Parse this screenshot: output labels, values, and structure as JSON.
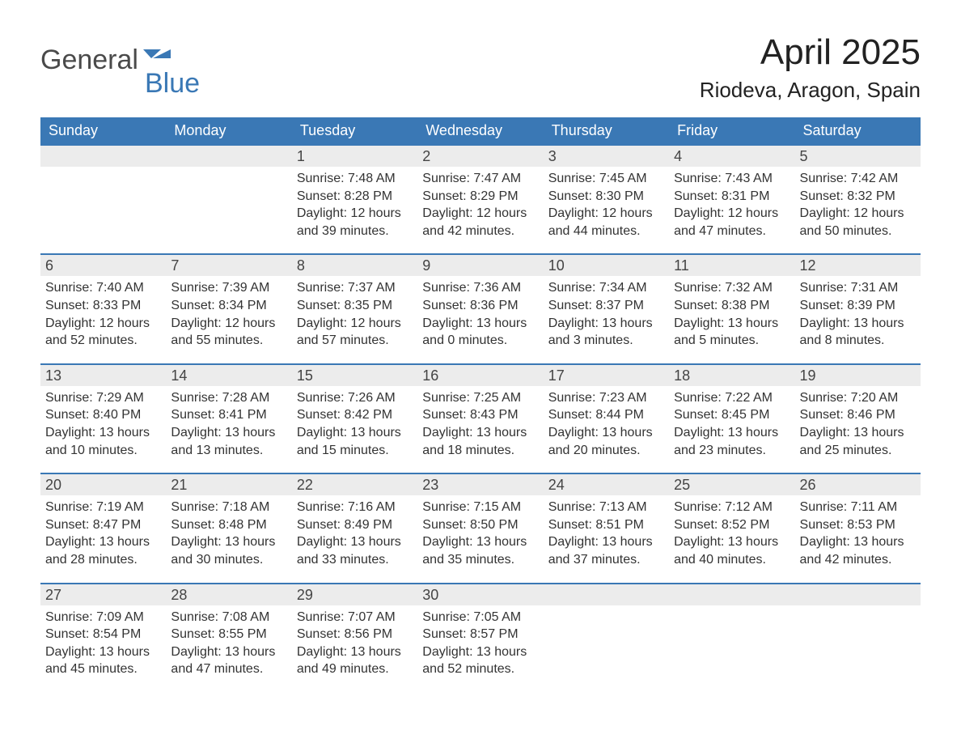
{
  "logo": {
    "part1": "General",
    "part2": "Blue",
    "icon_color": "#3a78b5",
    "text_color_1": "#4a4a4a",
    "text_color_2": "#3a78b5"
  },
  "title": "April 2025",
  "location": "Riodeva, Aragon, Spain",
  "colors": {
    "header_bg": "#3a78b5",
    "daynum_bg": "#ececec",
    "border": "#3a78b5",
    "text": "#333333"
  },
  "weekdays": [
    "Sunday",
    "Monday",
    "Tuesday",
    "Wednesday",
    "Thursday",
    "Friday",
    "Saturday"
  ],
  "weeks": [
    [
      {
        "n": "",
        "sunrise": "",
        "sunset": "",
        "daylight1": "",
        "daylight2": ""
      },
      {
        "n": "",
        "sunrise": "",
        "sunset": "",
        "daylight1": "",
        "daylight2": ""
      },
      {
        "n": "1",
        "sunrise": "Sunrise: 7:48 AM",
        "sunset": "Sunset: 8:28 PM",
        "daylight1": "Daylight: 12 hours",
        "daylight2": "and 39 minutes."
      },
      {
        "n": "2",
        "sunrise": "Sunrise: 7:47 AM",
        "sunset": "Sunset: 8:29 PM",
        "daylight1": "Daylight: 12 hours",
        "daylight2": "and 42 minutes."
      },
      {
        "n": "3",
        "sunrise": "Sunrise: 7:45 AM",
        "sunset": "Sunset: 8:30 PM",
        "daylight1": "Daylight: 12 hours",
        "daylight2": "and 44 minutes."
      },
      {
        "n": "4",
        "sunrise": "Sunrise: 7:43 AM",
        "sunset": "Sunset: 8:31 PM",
        "daylight1": "Daylight: 12 hours",
        "daylight2": "and 47 minutes."
      },
      {
        "n": "5",
        "sunrise": "Sunrise: 7:42 AM",
        "sunset": "Sunset: 8:32 PM",
        "daylight1": "Daylight: 12 hours",
        "daylight2": "and 50 minutes."
      }
    ],
    [
      {
        "n": "6",
        "sunrise": "Sunrise: 7:40 AM",
        "sunset": "Sunset: 8:33 PM",
        "daylight1": "Daylight: 12 hours",
        "daylight2": "and 52 minutes."
      },
      {
        "n": "7",
        "sunrise": "Sunrise: 7:39 AM",
        "sunset": "Sunset: 8:34 PM",
        "daylight1": "Daylight: 12 hours",
        "daylight2": "and 55 minutes."
      },
      {
        "n": "8",
        "sunrise": "Sunrise: 7:37 AM",
        "sunset": "Sunset: 8:35 PM",
        "daylight1": "Daylight: 12 hours",
        "daylight2": "and 57 minutes."
      },
      {
        "n": "9",
        "sunrise": "Sunrise: 7:36 AM",
        "sunset": "Sunset: 8:36 PM",
        "daylight1": "Daylight: 13 hours",
        "daylight2": "and 0 minutes."
      },
      {
        "n": "10",
        "sunrise": "Sunrise: 7:34 AM",
        "sunset": "Sunset: 8:37 PM",
        "daylight1": "Daylight: 13 hours",
        "daylight2": "and 3 minutes."
      },
      {
        "n": "11",
        "sunrise": "Sunrise: 7:32 AM",
        "sunset": "Sunset: 8:38 PM",
        "daylight1": "Daylight: 13 hours",
        "daylight2": "and 5 minutes."
      },
      {
        "n": "12",
        "sunrise": "Sunrise: 7:31 AM",
        "sunset": "Sunset: 8:39 PM",
        "daylight1": "Daylight: 13 hours",
        "daylight2": "and 8 minutes."
      }
    ],
    [
      {
        "n": "13",
        "sunrise": "Sunrise: 7:29 AM",
        "sunset": "Sunset: 8:40 PM",
        "daylight1": "Daylight: 13 hours",
        "daylight2": "and 10 minutes."
      },
      {
        "n": "14",
        "sunrise": "Sunrise: 7:28 AM",
        "sunset": "Sunset: 8:41 PM",
        "daylight1": "Daylight: 13 hours",
        "daylight2": "and 13 minutes."
      },
      {
        "n": "15",
        "sunrise": "Sunrise: 7:26 AM",
        "sunset": "Sunset: 8:42 PM",
        "daylight1": "Daylight: 13 hours",
        "daylight2": "and 15 minutes."
      },
      {
        "n": "16",
        "sunrise": "Sunrise: 7:25 AM",
        "sunset": "Sunset: 8:43 PM",
        "daylight1": "Daylight: 13 hours",
        "daylight2": "and 18 minutes."
      },
      {
        "n": "17",
        "sunrise": "Sunrise: 7:23 AM",
        "sunset": "Sunset: 8:44 PM",
        "daylight1": "Daylight: 13 hours",
        "daylight2": "and 20 minutes."
      },
      {
        "n": "18",
        "sunrise": "Sunrise: 7:22 AM",
        "sunset": "Sunset: 8:45 PM",
        "daylight1": "Daylight: 13 hours",
        "daylight2": "and 23 minutes."
      },
      {
        "n": "19",
        "sunrise": "Sunrise: 7:20 AM",
        "sunset": "Sunset: 8:46 PM",
        "daylight1": "Daylight: 13 hours",
        "daylight2": "and 25 minutes."
      }
    ],
    [
      {
        "n": "20",
        "sunrise": "Sunrise: 7:19 AM",
        "sunset": "Sunset: 8:47 PM",
        "daylight1": "Daylight: 13 hours",
        "daylight2": "and 28 minutes."
      },
      {
        "n": "21",
        "sunrise": "Sunrise: 7:18 AM",
        "sunset": "Sunset: 8:48 PM",
        "daylight1": "Daylight: 13 hours",
        "daylight2": "and 30 minutes."
      },
      {
        "n": "22",
        "sunrise": "Sunrise: 7:16 AM",
        "sunset": "Sunset: 8:49 PM",
        "daylight1": "Daylight: 13 hours",
        "daylight2": "and 33 minutes."
      },
      {
        "n": "23",
        "sunrise": "Sunrise: 7:15 AM",
        "sunset": "Sunset: 8:50 PM",
        "daylight1": "Daylight: 13 hours",
        "daylight2": "and 35 minutes."
      },
      {
        "n": "24",
        "sunrise": "Sunrise: 7:13 AM",
        "sunset": "Sunset: 8:51 PM",
        "daylight1": "Daylight: 13 hours",
        "daylight2": "and 37 minutes."
      },
      {
        "n": "25",
        "sunrise": "Sunrise: 7:12 AM",
        "sunset": "Sunset: 8:52 PM",
        "daylight1": "Daylight: 13 hours",
        "daylight2": "and 40 minutes."
      },
      {
        "n": "26",
        "sunrise": "Sunrise: 7:11 AM",
        "sunset": "Sunset: 8:53 PM",
        "daylight1": "Daylight: 13 hours",
        "daylight2": "and 42 minutes."
      }
    ],
    [
      {
        "n": "27",
        "sunrise": "Sunrise: 7:09 AM",
        "sunset": "Sunset: 8:54 PM",
        "daylight1": "Daylight: 13 hours",
        "daylight2": "and 45 minutes."
      },
      {
        "n": "28",
        "sunrise": "Sunrise: 7:08 AM",
        "sunset": "Sunset: 8:55 PM",
        "daylight1": "Daylight: 13 hours",
        "daylight2": "and 47 minutes."
      },
      {
        "n": "29",
        "sunrise": "Sunrise: 7:07 AM",
        "sunset": "Sunset: 8:56 PM",
        "daylight1": "Daylight: 13 hours",
        "daylight2": "and 49 minutes."
      },
      {
        "n": "30",
        "sunrise": "Sunrise: 7:05 AM",
        "sunset": "Sunset: 8:57 PM",
        "daylight1": "Daylight: 13 hours",
        "daylight2": "and 52 minutes."
      },
      {
        "n": "",
        "sunrise": "",
        "sunset": "",
        "daylight1": "",
        "daylight2": ""
      },
      {
        "n": "",
        "sunrise": "",
        "sunset": "",
        "daylight1": "",
        "daylight2": ""
      },
      {
        "n": "",
        "sunrise": "",
        "sunset": "",
        "daylight1": "",
        "daylight2": ""
      }
    ]
  ]
}
